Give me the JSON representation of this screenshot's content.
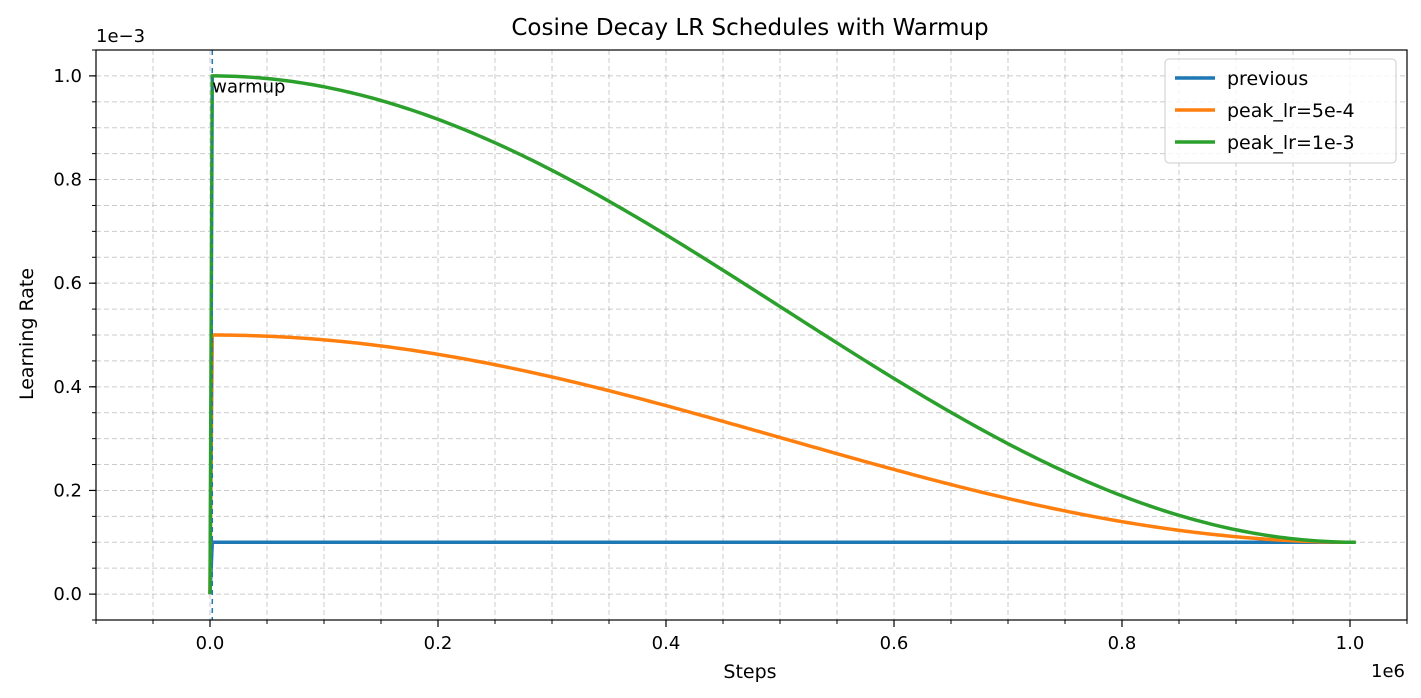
{
  "chart_data": {
    "type": "line",
    "title": "Cosine Decay LR Schedules with Warmup",
    "xlabel": "Steps",
    "ylabel": "Learning Rate",
    "x_offset_label": "1e6",
    "y_offset_label": "1e−3",
    "x_scale_factor": 1000000,
    "y_scale_factor": 0.001,
    "xlim": [
      -100000,
      1050000
    ],
    "ylim": [
      -5e-05,
      0.00105
    ],
    "x_ticks": [
      0,
      200000,
      400000,
      600000,
      800000,
      1000000
    ],
    "x_tick_labels": [
      "0.0",
      "0.2",
      "0.4",
      "0.6",
      "0.8",
      "1.0"
    ],
    "y_ticks": [
      0,
      0.0002,
      0.0004,
      0.0006,
      0.0008,
      0.001
    ],
    "y_tick_labels": [
      "0.0",
      "0.2",
      "0.4",
      "0.6",
      "0.8",
      "1.0"
    ],
    "x_minor_step": 50000,
    "y_minor_step": 5e-05,
    "grid": true,
    "legend_position": "top-right",
    "warmup_steps": 2000,
    "total_steps": 1005000,
    "min_lr": 0.0001,
    "annotation": {
      "text": "warmup",
      "x": 2000,
      "y": 0.00098
    },
    "series": [
      {
        "name": "previous",
        "color": "#1f77b4",
        "kind": "constant",
        "peak_lr": 0.0001
      },
      {
        "name": "peak_lr=5e-4",
        "color": "#ff7f0e",
        "kind": "cosine",
        "peak_lr": 0.0005
      },
      {
        "name": "peak_lr=1e-3",
        "color": "#2ca02c",
        "kind": "cosine",
        "peak_lr": 0.001
      }
    ]
  }
}
